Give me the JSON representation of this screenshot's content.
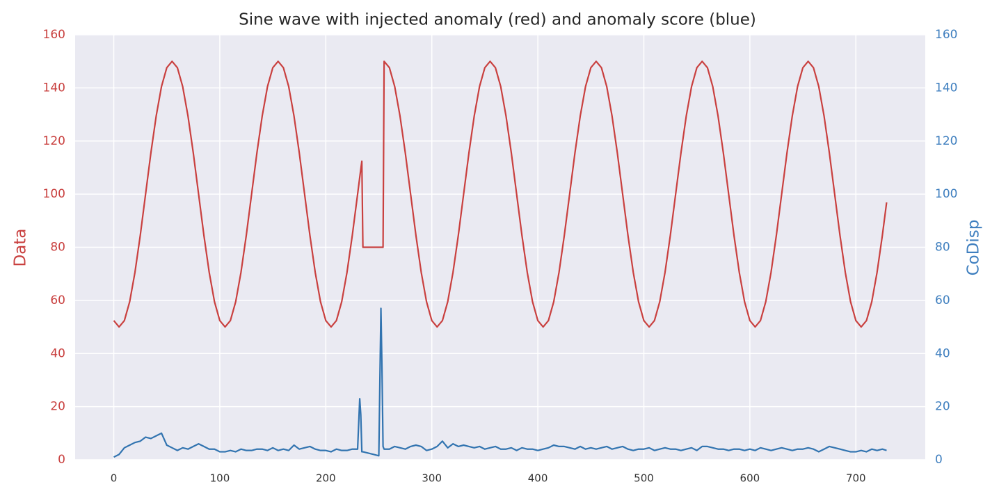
{
  "chart_data": {
    "type": "line",
    "title": "Sine wave with injected anomaly (red) and anomaly score (blue)",
    "ylabel": "Data",
    "y2label": "CoDisp",
    "x": [
      0,
      5,
      10,
      15,
      20,
      25,
      30,
      35,
      40,
      45,
      50,
      55,
      60,
      65,
      70,
      75,
      80,
      85,
      90,
      95,
      100,
      105,
      110,
      115,
      120,
      125,
      130,
      135,
      140,
      145,
      150,
      155,
      160,
      165,
      170,
      175,
      180,
      185,
      190,
      195,
      200,
      205,
      210,
      215,
      220,
      225,
      230,
      232,
      233,
      234,
      235,
      240,
      245,
      250,
      252,
      253,
      254,
      255,
      260,
      265,
      270,
      275,
      280,
      285,
      290,
      295,
      300,
      305,
      310,
      315,
      320,
      325,
      330,
      335,
      340,
      345,
      350,
      355,
      360,
      365,
      370,
      375,
      380,
      385,
      390,
      395,
      400,
      405,
      410,
      415,
      420,
      425,
      430,
      435,
      440,
      445,
      450,
      455,
      460,
      465,
      470,
      475,
      480,
      485,
      490,
      495,
      500,
      505,
      510,
      515,
      520,
      525,
      530,
      535,
      540,
      545,
      550,
      555,
      560,
      565,
      570,
      575,
      580,
      585,
      590,
      595,
      600,
      605,
      610,
      615,
      620,
      625,
      630,
      635,
      640,
      645,
      650,
      655,
      660,
      665,
      670,
      675,
      680,
      685,
      690,
      695,
      700,
      705,
      710,
      715,
      720,
      725,
      729
    ],
    "series": [
      {
        "color": "#c9403f",
        "values": [
          52.4,
          50,
          52.4,
          59.5,
          70.6,
          84.5,
          100,
          115.5,
          129.4,
          140.5,
          147.6,
          150,
          147.6,
          140.5,
          129.4,
          115.5,
          100,
          84.5,
          70.6,
          59.5,
          52.4,
          50,
          52.4,
          59.5,
          70.6,
          84.5,
          100,
          115.5,
          129.4,
          140.5,
          147.6,
          150,
          147.6,
          140.5,
          129.4,
          115.5,
          100,
          84.5,
          70.6,
          59.5,
          52.4,
          50,
          52.4,
          59.5,
          70.6,
          84.5,
          100,
          106.3,
          109.4,
          112.4,
          80,
          80,
          80,
          80,
          80,
          80,
          80,
          150,
          147.6,
          140.5,
          129.4,
          115.5,
          100,
          84.5,
          70.6,
          59.5,
          52.4,
          50,
          52.4,
          59.5,
          70.6,
          84.5,
          100,
          115.5,
          129.4,
          140.5,
          147.6,
          150,
          147.6,
          140.5,
          129.4,
          115.5,
          100,
          84.5,
          70.6,
          59.5,
          52.4,
          50,
          52.4,
          59.5,
          70.6,
          84.5,
          100,
          115.5,
          129.4,
          140.5,
          147.6,
          150,
          147.6,
          140.5,
          129.4,
          115.5,
          100,
          84.5,
          70.6,
          59.5,
          52.4,
          50,
          52.4,
          59.5,
          70.6,
          84.5,
          100,
          115.5,
          129.4,
          140.5,
          147.6,
          150,
          147.6,
          140.5,
          129.4,
          115.5,
          100,
          84.5,
          70.6,
          59.5,
          52.4,
          50,
          52.4,
          59.5,
          70.6,
          84.5,
          100,
          115.5,
          129.4,
          140.5,
          147.6,
          150,
          147.6,
          140.5,
          129.4,
          115.5,
          100,
          84.5,
          70.6,
          59.5,
          52.4,
          50,
          52.4,
          59.5,
          70.6,
          84.5,
          96.9
        ]
      },
      {
        "color": "#3274b0",
        "axis": "y2",
        "values": [
          1,
          2,
          4.5,
          5.5,
          6.5,
          7,
          8.5,
          8,
          9,
          10,
          5.5,
          4.5,
          3.5,
          4.5,
          4,
          5,
          6,
          5,
          4,
          4,
          3,
          3,
          3.5,
          3,
          4,
          3.5,
          3.5,
          4,
          4,
          3.5,
          4.5,
          3.5,
          4,
          3.5,
          5.5,
          4,
          4.5,
          5,
          4,
          3.5,
          3.5,
          3,
          4,
          3.5,
          3.5,
          4,
          4,
          23,
          17,
          3,
          3,
          2.5,
          2,
          1.5,
          57,
          34,
          5,
          4,
          4,
          5,
          4.5,
          4,
          5,
          5.5,
          5,
          3.5,
          4,
          5,
          7,
          4.5,
          6,
          5,
          5.5,
          5,
          4.5,
          5,
          4,
          4.5,
          5,
          4,
          4,
          4.5,
          3.5,
          4.5,
          4,
          4,
          3.5,
          4,
          4.5,
          5.5,
          5,
          5,
          4.5,
          4,
          5,
          4,
          4.5,
          4,
          4.5,
          5,
          4,
          4.5,
          5,
          4,
          3.5,
          4,
          4,
          4.5,
          3.5,
          4,
          4.5,
          4,
          4,
          3.5,
          4,
          4.5,
          3.5,
          5,
          5,
          4.5,
          4,
          4,
          3.5,
          4,
          4,
          3.5,
          4,
          3.5,
          4.5,
          4,
          3.5,
          4,
          4.5,
          4,
          3.5,
          4,
          4,
          4.5,
          4,
          3,
          4,
          5,
          4.5,
          4,
          3.5,
          3,
          3,
          3.5,
          3,
          4,
          3.5,
          4,
          3.5
        ]
      }
    ],
    "xlim": [
      -36.45,
      765.45
    ],
    "xticks": [
      0,
      100,
      200,
      300,
      400,
      500,
      600,
      700
    ],
    "ylim": [
      0,
      160
    ],
    "yticks": [
      0,
      20,
      40,
      60,
      80,
      100,
      120,
      140,
      160
    ],
    "y2lim": [
      0,
      160
    ],
    "y2ticks": [
      0,
      20,
      40,
      60,
      80,
      100,
      120,
      140,
      160
    ],
    "grid": true,
    "ylabel_color": "#c9403f",
    "y2label_color": "#3f7fbf"
  }
}
